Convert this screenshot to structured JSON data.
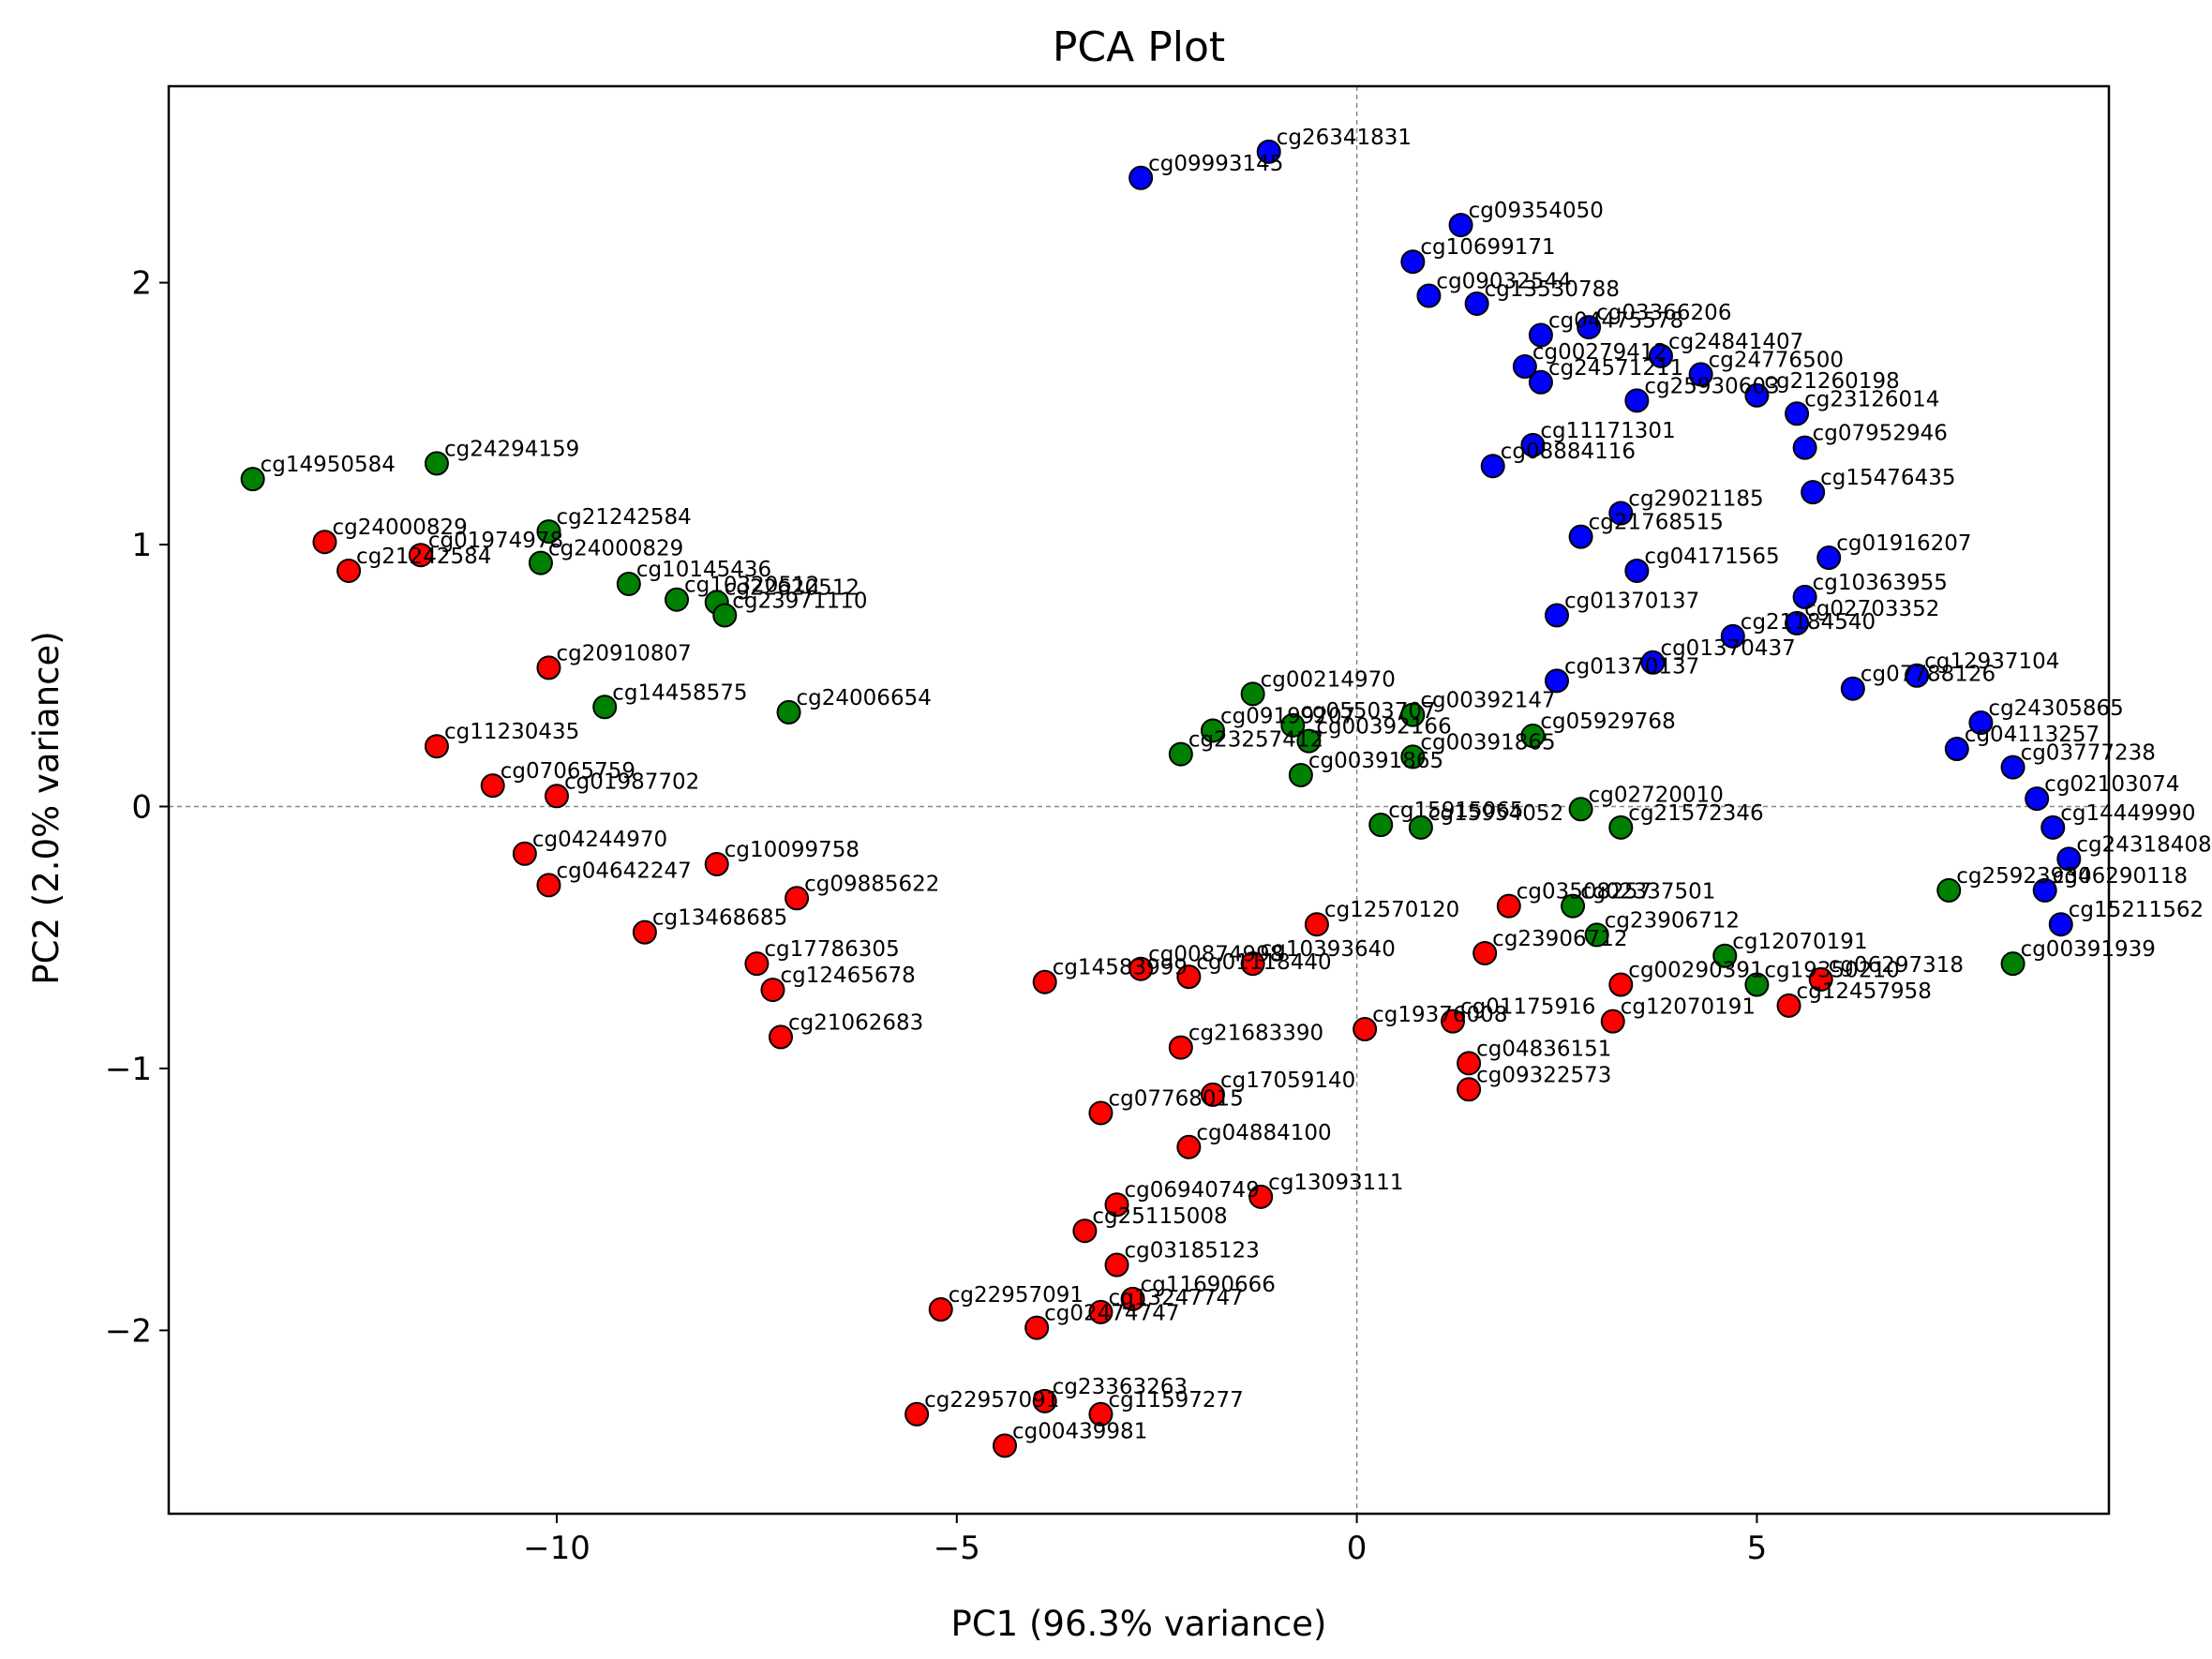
{
  "chart_data": {
    "type": "scatter",
    "title": "PCA Plot",
    "xlabel": "PC1 (96.3% variance)",
    "ylabel": "PC2 (2.0% variance)",
    "xlim": [
      -14.85,
      9.4
    ],
    "ylim": [
      -2.7,
      2.75
    ],
    "xticks": [
      -10,
      -5,
      0,
      5
    ],
    "xtick_labels": [
      "−10",
      "−5",
      "0",
      "5"
    ],
    "yticks": [
      -2,
      -1,
      0,
      1,
      2
    ],
    "ytick_labels": [
      "−2",
      "−1",
      "0",
      "1",
      "2"
    ],
    "grid": false,
    "reference_lines": {
      "x": 0,
      "y": 0,
      "style": "dashed"
    },
    "legend": "none",
    "colors": {
      "red": "#ff0000",
      "green": "#008000",
      "blue": "#0000ff",
      "edge": "#000000"
    },
    "series": [
      {
        "color": "red",
        "points": [
          {
            "x": -10.1,
            "y": 0.53,
            "label": "cg20910807"
          },
          {
            "x": -11.5,
            "y": 0.23,
            "label": "cg11230435"
          },
          {
            "x": -10.8,
            "y": 0.08,
            "label": "cg07065759"
          },
          {
            "x": -10.0,
            "y": 0.04,
            "label": "cg01987702"
          },
          {
            "x": -10.4,
            "y": -0.18,
            "label": "cg04244970"
          },
          {
            "x": -8.0,
            "y": -0.22,
            "label": "cg10099758"
          },
          {
            "x": -10.1,
            "y": -0.3,
            "label": "cg04642247"
          },
          {
            "x": -7.0,
            "y": -0.35,
            "label": "cg09885622"
          },
          {
            "x": -8.9,
            "y": -0.48,
            "label": "cg13468685"
          },
          {
            "x": -7.5,
            "y": -0.6,
            "label": "cg17786305"
          },
          {
            "x": -7.3,
            "y": -0.7,
            "label": "cg12465678"
          },
          {
            "x": -7.2,
            "y": -0.88,
            "label": "cg21062683"
          },
          {
            "x": -5.2,
            "y": -1.92,
            "label": "cg22957091"
          },
          {
            "x": -5.5,
            "y": -2.32,
            "label": "cg22957091"
          },
          {
            "x": -3.9,
            "y": -2.27,
            "label": "cg23363263"
          },
          {
            "x": -3.2,
            "y": -2.32,
            "label": "cg11597277"
          },
          {
            "x": -4.4,
            "y": -2.44,
            "label": "cg00439981"
          },
          {
            "x": -4.0,
            "y": -1.99,
            "label": "cg02474747"
          },
          {
            "x": -3.2,
            "y": -1.93,
            "label": "cg13247747"
          },
          {
            "x": -2.8,
            "y": -1.88,
            "label": "cg11690666"
          },
          {
            "x": -3.0,
            "y": -1.75,
            "label": "cg03185123"
          },
          {
            "x": -3.4,
            "y": -1.62,
            "label": "cg25115008"
          },
          {
            "x": -3.0,
            "y": -1.52,
            "label": "cg06940749"
          },
          {
            "x": -1.2,
            "y": -1.49,
            "label": "cg13093111"
          },
          {
            "x": -2.1,
            "y": -1.3,
            "label": "cg04884100"
          },
          {
            "x": -3.2,
            "y": -1.17,
            "label": "cg07768015"
          },
          {
            "x": -1.8,
            "y": -1.1,
            "label": "cg17059140"
          },
          {
            "x": -2.2,
            "y": -0.92,
            "label": "cg21683390"
          },
          {
            "x": -3.9,
            "y": -0.67,
            "label": "cg14583999"
          },
          {
            "x": -2.7,
            "y": -0.62,
            "label": "cg00874998"
          },
          {
            "x": -2.1,
            "y": -0.65,
            "label": "cg01118440"
          },
          {
            "x": -1.3,
            "y": -0.6,
            "label": "cg10393640"
          },
          {
            "x": -0.5,
            "y": -0.45,
            "label": "cg12570120"
          },
          {
            "x": 0.1,
            "y": -0.85,
            "label": "cg19376008"
          },
          {
            "x": 1.2,
            "y": -0.82,
            "label": "cg01175916"
          },
          {
            "x": 1.4,
            "y": -0.98,
            "label": "cg04836151"
          },
          {
            "x": 1.4,
            "y": -1.08,
            "label": "cg09322573"
          },
          {
            "x": 1.6,
            "y": -0.56,
            "label": "cg23906712"
          },
          {
            "x": 1.9,
            "y": -0.38,
            "label": "cg03508257"
          },
          {
            "x": 3.3,
            "y": -0.68,
            "label": "cg00290391"
          },
          {
            "x": 3.2,
            "y": -0.82,
            "label": "cg12070191"
          },
          {
            "x": 5.4,
            "y": -0.76,
            "label": "cg12457958"
          },
          {
            "x": 5.8,
            "y": -0.66,
            "label": "cg06297318"
          },
          {
            "x": -12.9,
            "y": 1.01,
            "label": "cg24000829"
          },
          {
            "x": -11.7,
            "y": 0.96,
            "label": "cg01974978"
          },
          {
            "x": -12.6,
            "y": 0.9,
            "label": "cg21242584"
          }
        ]
      },
      {
        "color": "green",
        "points": [
          {
            "x": -11.5,
            "y": 1.31,
            "label": "cg24294159"
          },
          {
            "x": -13.8,
            "y": 1.25,
            "label": "cg14950584"
          },
          {
            "x": -10.1,
            "y": 1.05,
            "label": "cg21242584"
          },
          {
            "x": -10.2,
            "y": 0.93,
            "label": "cg24000829"
          },
          {
            "x": -9.1,
            "y": 0.85,
            "label": "cg10145436"
          },
          {
            "x": -8.5,
            "y": 0.79,
            "label": "cg10320512"
          },
          {
            "x": -8.0,
            "y": 0.78,
            "label": "cg22620512"
          },
          {
            "x": -7.9,
            "y": 0.73,
            "label": "cg23971110"
          },
          {
            "x": -9.4,
            "y": 0.38,
            "label": "cg14458575"
          },
          {
            "x": -7.1,
            "y": 0.36,
            "label": "cg24006654"
          },
          {
            "x": -1.3,
            "y": 0.43,
            "label": "cg00214970"
          },
          {
            "x": -1.8,
            "y": 0.29,
            "label": "cg09199207"
          },
          {
            "x": -0.8,
            "y": 0.31,
            "label": "cg05503707"
          },
          {
            "x": -0.6,
            "y": 0.25,
            "label": "cg00392166"
          },
          {
            "x": -2.2,
            "y": 0.2,
            "label": "cg23257412"
          },
          {
            "x": -0.7,
            "y": 0.12,
            "label": "cg00391865"
          },
          {
            "x": 0.7,
            "y": 0.19,
            "label": "cg00391865"
          },
          {
            "x": 0.7,
            "y": 0.35,
            "label": "cg00392147"
          },
          {
            "x": 2.2,
            "y": 0.27,
            "label": "cg05929768"
          },
          {
            "x": 0.3,
            "y": -0.07,
            "label": "cg15915065"
          },
          {
            "x": 0.8,
            "y": -0.08,
            "label": "cg15954052"
          },
          {
            "x": 2.8,
            "y": -0.01,
            "label": "cg02720010"
          },
          {
            "x": 3.3,
            "y": -0.08,
            "label": "cg21572346"
          },
          {
            "x": 2.7,
            "y": -0.38,
            "label": "cg02337501"
          },
          {
            "x": 3.0,
            "y": -0.49,
            "label": "cg23906712"
          },
          {
            "x": 4.6,
            "y": -0.57,
            "label": "cg12070191"
          },
          {
            "x": 5.0,
            "y": -0.68,
            "label": "cg19350210"
          },
          {
            "x": 7.4,
            "y": -0.32,
            "label": "cg25923934"
          },
          {
            "x": 8.2,
            "y": -0.6,
            "label": "cg00391939"
          }
        ]
      },
      {
        "color": "blue",
        "points": [
          {
            "x": -2.7,
            "y": 2.4,
            "label": "cg09993145"
          },
          {
            "x": -1.1,
            "y": 2.5,
            "label": "cg26341831"
          },
          {
            "x": 1.3,
            "y": 2.22,
            "label": "cg09354050"
          },
          {
            "x": 0.7,
            "y": 2.08,
            "label": "cg10699171"
          },
          {
            "x": 0.9,
            "y": 1.95,
            "label": "cg09032544"
          },
          {
            "x": 1.5,
            "y": 1.92,
            "label": "cg13530788"
          },
          {
            "x": 2.3,
            "y": 1.8,
            "label": "cg04475578"
          },
          {
            "x": 2.9,
            "y": 1.83,
            "label": "cg03366206"
          },
          {
            "x": 3.8,
            "y": 1.72,
            "label": "cg24841407"
          },
          {
            "x": 2.1,
            "y": 1.68,
            "label": "cg00279412"
          },
          {
            "x": 4.3,
            "y": 1.65,
            "label": "cg24776500"
          },
          {
            "x": 2.3,
            "y": 1.62,
            "label": "cg24571211"
          },
          {
            "x": 5.0,
            "y": 1.57,
            "label": "cg21260198"
          },
          {
            "x": 3.5,
            "y": 1.55,
            "label": "cg25930603"
          },
          {
            "x": 5.5,
            "y": 1.5,
            "label": "cg23126014"
          },
          {
            "x": 2.2,
            "y": 1.38,
            "label": "cg11171301"
          },
          {
            "x": 1.7,
            "y": 1.3,
            "label": "cg08884116"
          },
          {
            "x": 5.6,
            "y": 1.37,
            "label": "cg07952946"
          },
          {
            "x": 3.3,
            "y": 1.12,
            "label": "cg29021185"
          },
          {
            "x": 5.7,
            "y": 1.2,
            "label": "cg15476435"
          },
          {
            "x": 2.8,
            "y": 1.03,
            "label": "cg21768515"
          },
          {
            "x": 5.9,
            "y": 0.95,
            "label": "cg01916207"
          },
          {
            "x": 3.5,
            "y": 0.9,
            "label": "cg04171565"
          },
          {
            "x": 5.6,
            "y": 0.8,
            "label": "cg10363955"
          },
          {
            "x": 2.5,
            "y": 0.73,
            "label": "cg01370137"
          },
          {
            "x": 5.5,
            "y": 0.7,
            "label": "cg02703352"
          },
          {
            "x": 4.7,
            "y": 0.65,
            "label": "cg21184540"
          },
          {
            "x": 3.7,
            "y": 0.55,
            "label": "cg01370437"
          },
          {
            "x": 7.0,
            "y": 0.5,
            "label": "cg12937104"
          },
          {
            "x": 6.2,
            "y": 0.45,
            "label": "cg07788126"
          },
          {
            "x": 2.5,
            "y": 0.48,
            "label": "cg01370137"
          },
          {
            "x": 7.8,
            "y": 0.32,
            "label": "cg24305865"
          },
          {
            "x": 7.5,
            "y": 0.22,
            "label": "cg04113257"
          },
          {
            "x": 8.2,
            "y": 0.15,
            "label": "cg03777238"
          },
          {
            "x": 8.5,
            "y": 0.03,
            "label": "cg02103074"
          },
          {
            "x": 8.7,
            "y": -0.08,
            "label": "cg14449990"
          },
          {
            "x": 8.9,
            "y": -0.2,
            "label": "cg24318408"
          },
          {
            "x": 8.6,
            "y": -0.32,
            "label": "cg06290118"
          },
          {
            "x": 8.8,
            "y": -0.45,
            "label": "cg15211562"
          }
        ]
      }
    ]
  }
}
